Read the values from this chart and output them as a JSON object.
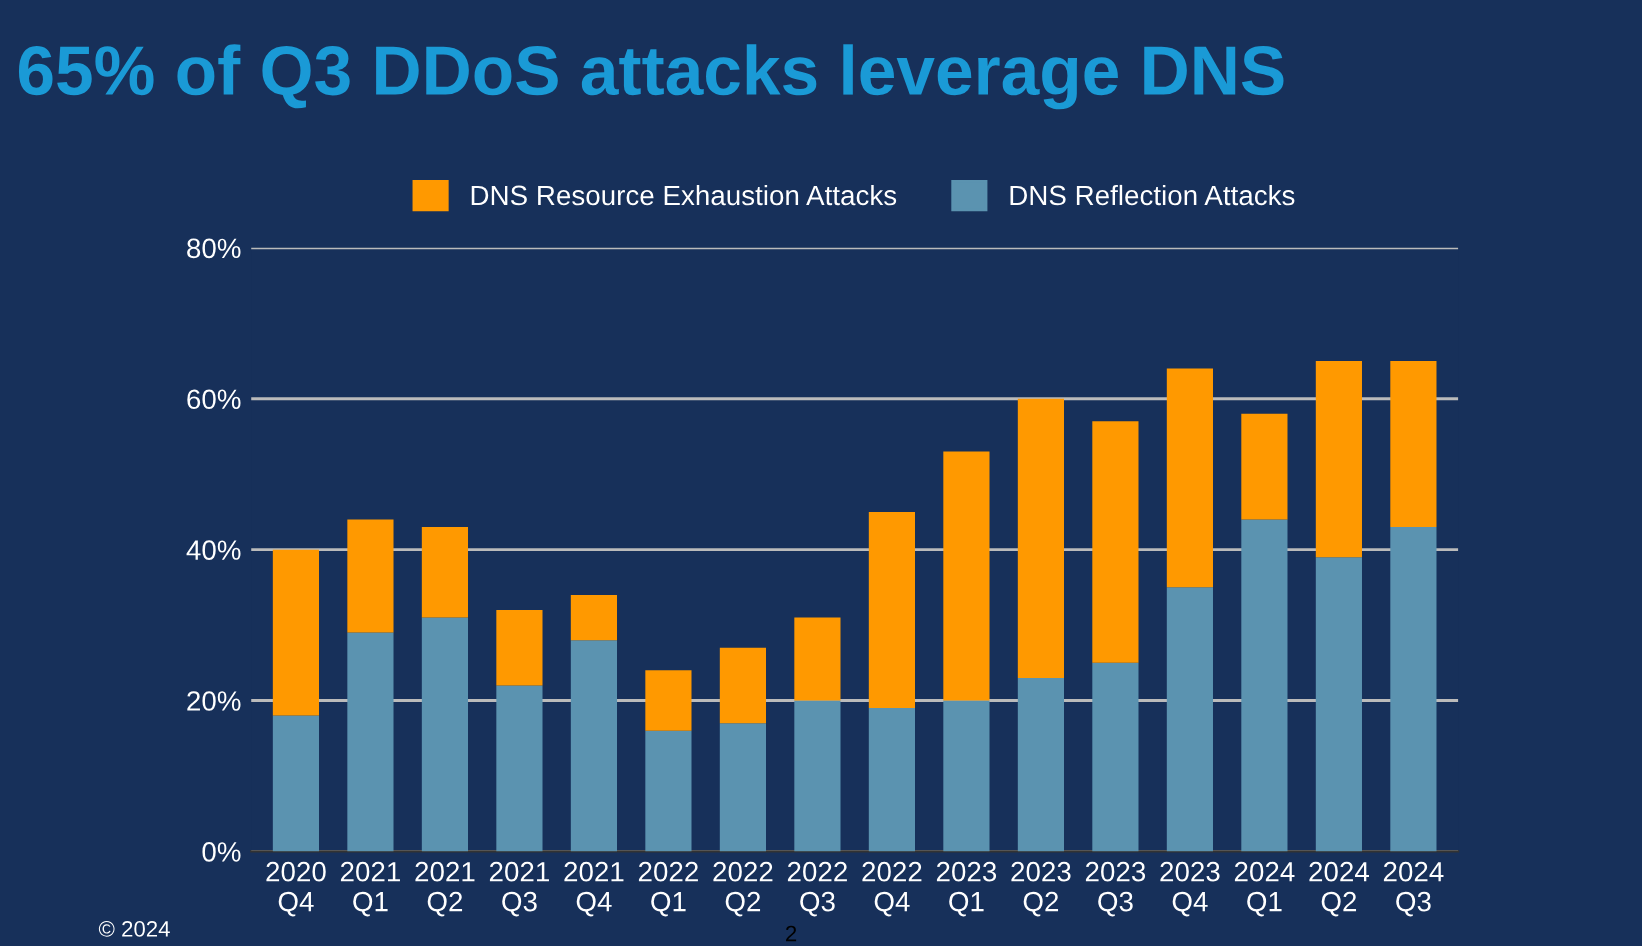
{
  "chart_data": {
    "type": "bar",
    "title": "65% of Q3 DDoS attacks leverage DNS",
    "stacked": true,
    "categories": [
      "2020\nQ4",
      "2021\nQ1",
      "2021\nQ2",
      "2021\nQ3",
      "2021\nQ4",
      "2022\nQ1",
      "2022\nQ2",
      "2022\nQ3",
      "2022\nQ4",
      "2023\nQ1",
      "2023\nQ2",
      "2023\nQ3",
      "2023\nQ4",
      "2024\nQ1",
      "2024\nQ2",
      "2024\nQ3"
    ],
    "series": [
      {
        "name": "DNS Reflection Attacks",
        "color": "#5b93b0",
        "values": [
          18,
          29,
          31,
          22,
          28,
          16,
          17,
          20,
          19,
          20,
          23,
          25,
          35,
          44,
          39,
          43
        ]
      },
      {
        "name": "DNS Resource Exhaustion Attacks",
        "color": "#ff9900",
        "values": [
          22,
          15,
          12,
          10,
          6,
          8,
          10,
          11,
          26,
          33,
          37,
          32,
          29,
          14,
          26,
          22
        ]
      }
    ],
    "ylim": [
      0,
      80
    ],
    "yticks": [
      {
        "value": 0,
        "label": "0%"
      },
      {
        "value": 20,
        "label": "20%"
      },
      {
        "value": 40,
        "label": "40%"
      },
      {
        "value": 60,
        "label": "60%"
      },
      {
        "value": 80,
        "label": "80%"
      }
    ],
    "grid": "y",
    "legend": "top",
    "annotations": [
      "© 2024",
      "2"
    ]
  }
}
